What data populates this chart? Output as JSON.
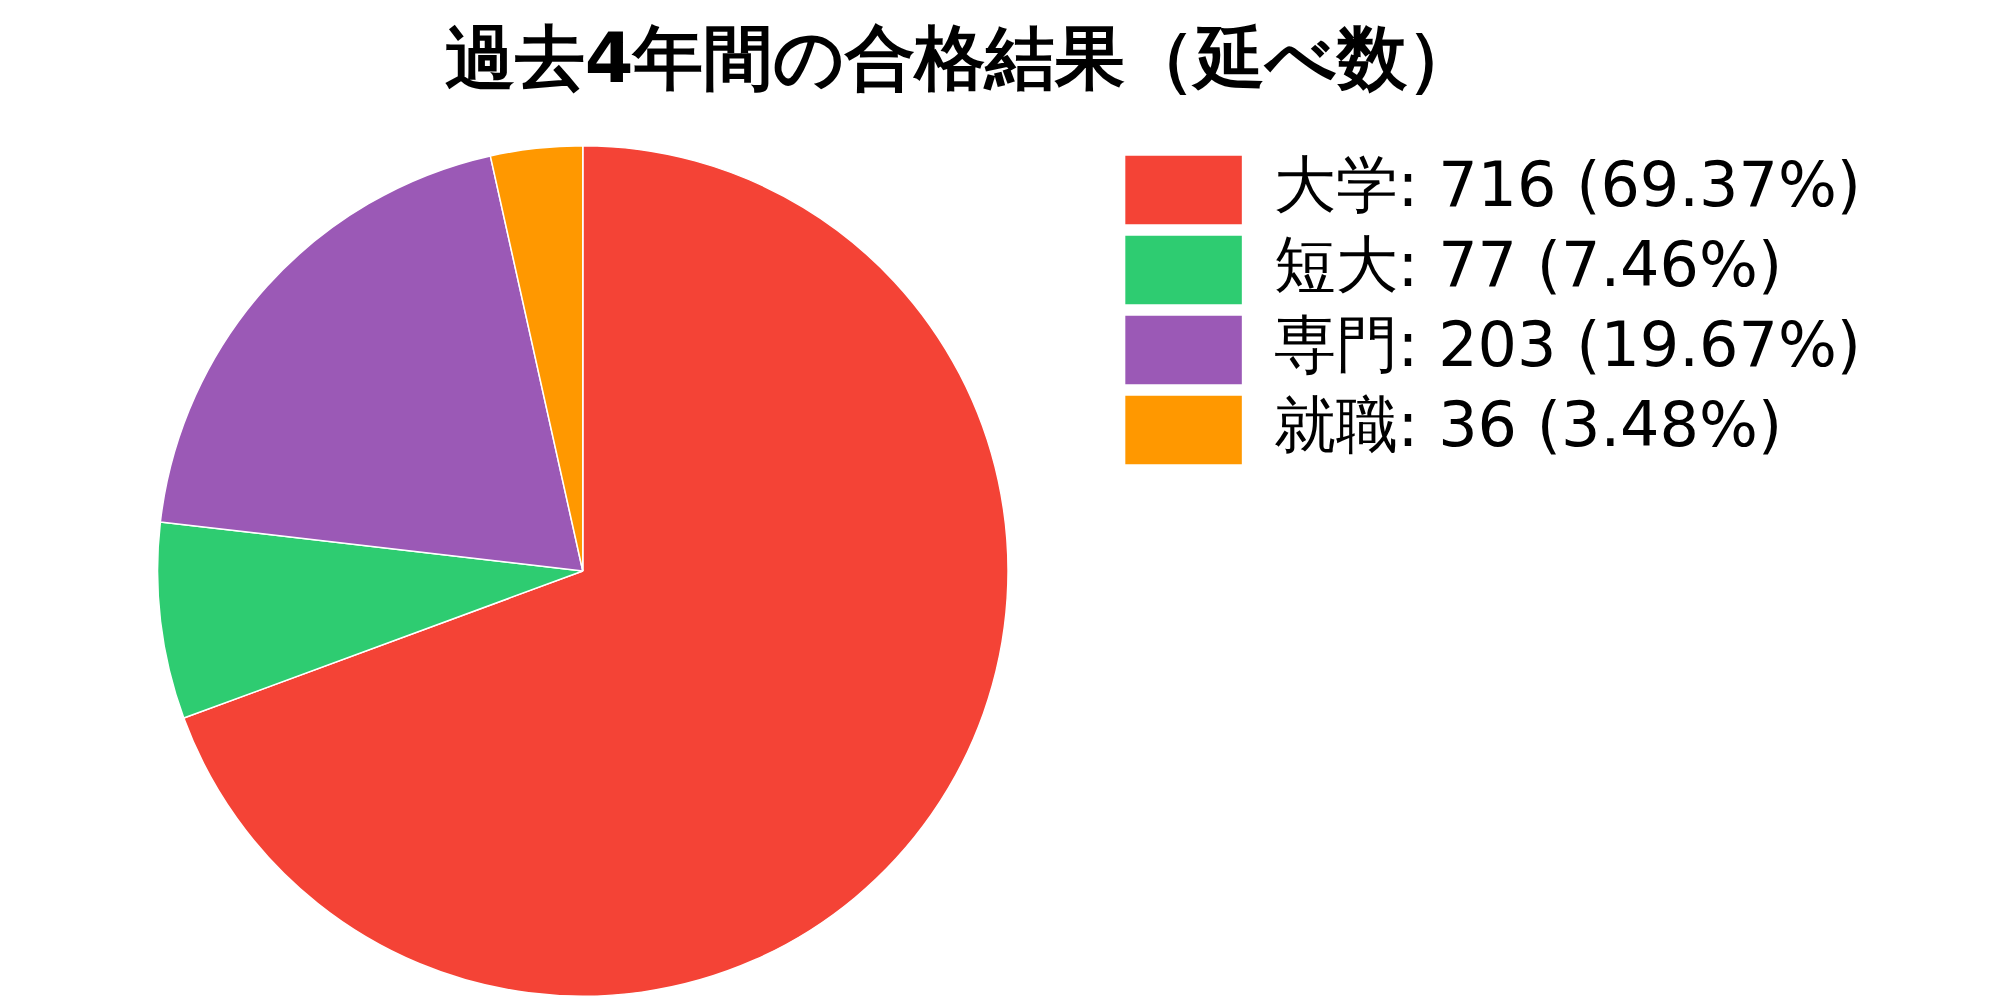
{
  "chart_data": {
    "type": "pie",
    "title": "過去4年間の合格結果（延べ数）",
    "categories": [
      "大学: 716 (69.37%)",
      "短大: 77 (7.46%)",
      "専門: 203 (19.67%)",
      "就職: 36 (3.48%)"
    ],
    "values": [
      716,
      77,
      203,
      36
    ],
    "colors": [
      "#f44336",
      "#2ecc71",
      "#9b59b6",
      "#ff9800"
    ],
    "legend": "top right"
  }
}
